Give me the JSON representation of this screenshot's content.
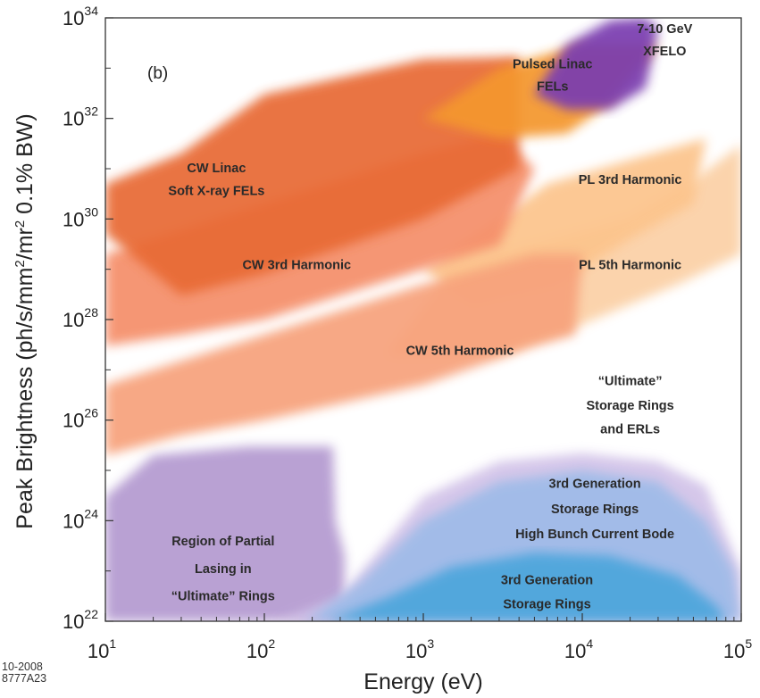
{
  "chart_data": {
    "type": "area",
    "panel_label": "(b)",
    "xlabel": "Energy  (eV)",
    "ylabel_parts": [
      "Peak Brightness  (ph/s/mm",
      "2",
      "/mr",
      "2",
      " 0.1% BW)"
    ],
    "xscale": "log",
    "yscale": "log",
    "xlim": [
      10,
      100000
    ],
    "ylim": [
      1e+22,
      1e+34
    ],
    "x_ticks": [
      {
        "base": "10",
        "exp": "1",
        "value": 10
      },
      {
        "base": "10",
        "exp": "2",
        "value": 100
      },
      {
        "base": "10",
        "exp": "3",
        "value": 1000
      },
      {
        "base": "10",
        "exp": "4",
        "value": 10000
      },
      {
        "base": "10",
        "exp": "5",
        "value": 100000
      }
    ],
    "y_ticks": [
      {
        "base": "10",
        "exp": "22",
        "value": 1e+22
      },
      {
        "base": "10",
        "exp": "24",
        "value": 1e+24
      },
      {
        "base": "10",
        "exp": "26",
        "value": 1e+26
      },
      {
        "base": "10",
        "exp": "28",
        "value": 1e+28
      },
      {
        "base": "10",
        "exp": "30",
        "value": 1e+30
      },
      {
        "base": "10",
        "exp": "32",
        "value": 1e+32
      },
      {
        "base": "10",
        "exp": "34",
        "value": 1e+34
      }
    ],
    "grid": false,
    "regions": [
      {
        "id": "partial-lasing",
        "color": "#b49ad0",
        "points": [
          [
            10,
            3e+24
          ],
          [
            20,
            2e+25
          ],
          [
            80,
            3e+25
          ],
          [
            270,
            3e+25
          ],
          [
            280,
            1e+24
          ],
          [
            320,
            2e+23
          ],
          [
            320,
            1e+22
          ],
          [
            10,
            1e+22
          ]
        ],
        "labels": [
          {
            "text": "Region of Partial",
            "pos": [
              55,
              3.2e+23
            ]
          },
          {
            "text": "Lasing in",
            "pos": [
              55,
              9e+22
            ]
          },
          {
            "text": "“Ultimate” Rings",
            "pos": [
              55,
              2.6e+22
            ]
          }
        ]
      },
      {
        "id": "ultimate-rings-halo",
        "color": "#d2c3e8",
        "points": [
          [
            120,
            1e+22
          ],
          [
            300,
            3e+22
          ],
          [
            1000,
            3e+24
          ],
          [
            3000,
            1.5e+25
          ],
          [
            10000,
            2.2e+25
          ],
          [
            30000,
            1.5e+25
          ],
          [
            60000,
            5e+24
          ],
          [
            100000,
            1e+23
          ],
          [
            100000,
            1e+22
          ]
        ],
        "labels": [
          {
            "text": "“Ultimate”",
            "pos": [
              20000,
              5e+26
            ]
          },
          {
            "text": "Storage Rings",
            "pos": [
              20000,
              1.6e+26
            ]
          },
          {
            "text": "and ERLs",
            "pos": [
              20000,
              5.5e+25
            ]
          }
        ]
      },
      {
        "id": "3rd-gen-high-current",
        "color": "#9fbbe8",
        "points": [
          [
            180,
            1e+22
          ],
          [
            400,
            6e+22
          ],
          [
            1000,
            1e+24
          ],
          [
            3000,
            6e+24
          ],
          [
            10000,
            1e+25
          ],
          [
            30000,
            6e+24
          ],
          [
            60000,
            1e+24
          ],
          [
            90000,
            1e+23
          ],
          [
            100000,
            1e+22
          ]
        ],
        "labels": [
          {
            "text": "3rd Generation",
            "pos": [
              12000,
              4.5e+24
            ]
          },
          {
            "text": "Storage Rings",
            "pos": [
              12000,
              1.4e+24
            ]
          },
          {
            "text": "High Bunch Current Bode",
            "pos": [
              12000,
              4.5e+23
            ]
          }
        ]
      },
      {
        "id": "3rd-gen",
        "color": "#4ea6dc",
        "points": [
          [
            250,
            1e+22
          ],
          [
            600,
            3e+22
          ],
          [
            1500,
            1.2e+23
          ],
          [
            5000,
            2.3e+23
          ],
          [
            15000,
            2e+23
          ],
          [
            40000,
            8e+22
          ],
          [
            70000,
            2e+22
          ],
          [
            80000,
            1e+22
          ]
        ],
        "labels": [
          {
            "text": "3rd Generation",
            "pos": [
              6000,
              5.5e+22
            ]
          },
          {
            "text": "Storage Rings",
            "pos": [
              6000,
              1.8e+22
            ]
          }
        ]
      },
      {
        "id": "pl-5th-harmonic",
        "color": "#fbd0a6",
        "points": [
          [
            600,
            2e+27
          ],
          [
            1500,
            1e+29
          ],
          [
            5000,
            3e+29
          ],
          [
            20000,
            1e+30
          ],
          [
            50000,
            6e+30
          ],
          [
            100000,
            3e+31
          ],
          [
            100000,
            2e+29
          ],
          [
            40000,
            5e+28
          ],
          [
            10000,
            8e+27
          ],
          [
            3000,
            2e+27
          ]
        ],
        "labels": [
          {
            "text": "PL 5th Harmonic",
            "pos": [
              20000,
              1e+29
            ]
          }
        ]
      },
      {
        "id": "pl-3rd-harmonic",
        "color": "#fcc48c",
        "points": [
          [
            1000,
            1e+29
          ],
          [
            3000,
            1e+30
          ],
          [
            6000,
            5e+30
          ],
          [
            20000,
            1.5e+31
          ],
          [
            60000,
            4e+31
          ],
          [
            50000,
            2e+30
          ],
          [
            20000,
            4e+29
          ],
          [
            7000,
            5e+28
          ],
          [
            2000,
            2e+28
          ]
        ],
        "labels": [
          {
            "text": "PL 3rd Harmonic",
            "pos": [
              20000,
              5e+30
            ]
          }
        ]
      },
      {
        "id": "cw-5th-harmonic",
        "color": "#f7a27c",
        "points": [
          [
            10,
            2e+25
          ],
          [
            10,
            5e+26
          ],
          [
            100,
            5e+27
          ],
          [
            1000,
            5e+28
          ],
          [
            5000,
            2e+29
          ],
          [
            10000,
            2e+29
          ],
          [
            9000,
            5e+27
          ],
          [
            5000,
            3e+27
          ],
          [
            1000,
            5e+26
          ],
          [
            100,
            1e+26
          ],
          [
            30,
            5e+25
          ]
        ],
        "labels": [
          {
            "text": "CW 5th Harmonic",
            "pos": [
              1700,
              2e+27
            ]
          }
        ]
      },
      {
        "id": "cw-3rd-harmonic",
        "color": "#f58f6a",
        "points": [
          [
            10,
            3e+27
          ],
          [
            10,
            2e+29
          ],
          [
            100,
            2e+30
          ],
          [
            1000,
            2e+31
          ],
          [
            3000,
            5e+31
          ],
          [
            5000,
            1e+31
          ],
          [
            3000,
            3e+29
          ],
          [
            1000,
            1e+29
          ],
          [
            100,
            1e+28
          ],
          [
            30,
            5e+27
          ]
        ],
        "labels": [
          {
            "text": "CW 3rd Harmonic",
            "pos": [
              160,
              1e+29
            ]
          }
        ]
      },
      {
        "id": "cw-linac-soft-xray",
        "color": "#e86a34",
        "points": [
          [
            10,
            5e+29
          ],
          [
            10,
            5e+30
          ],
          [
            30,
            2e+31
          ],
          [
            100,
            3e+32
          ],
          [
            1000,
            1.5e+33
          ],
          [
            4000,
            1.7e+33
          ],
          [
            4000,
            1e+31
          ],
          [
            1000,
            1e+30
          ],
          [
            100,
            8e+28
          ],
          [
            30,
            3e+28
          ]
        ],
        "labels": [
          {
            "text": "CW Linac",
            "pos": [
              50,
              8.5e+30
            ]
          },
          {
            "text": "Soft X-ray FELs",
            "pos": [
              50,
              3e+30
            ]
          }
        ]
      },
      {
        "id": "pulsed-linac-fels",
        "color": "#f4972e",
        "points": [
          [
            1000,
            1e+32
          ],
          [
            3000,
            1e+33
          ],
          [
            10000,
            3e+33
          ],
          [
            30000,
            3e+33
          ],
          [
            15000,
            2e+32
          ],
          [
            8000,
            5e+31
          ],
          [
            3000,
            4e+31
          ]
        ],
        "labels": [
          {
            "text": "Pulsed Linac",
            "pos": [
              6500,
              1e+33
            ]
          },
          {
            "text": "FELs",
            "pos": [
              6500,
              3.6e+32
            ]
          }
        ]
      },
      {
        "id": "xfelo",
        "color": "#7a3cb0",
        "points": [
          [
            5000,
            3e+32
          ],
          [
            8000,
            3e+33
          ],
          [
            15000,
            9e+33
          ],
          [
            25000,
            1e+34
          ],
          [
            30000,
            6e+33
          ],
          [
            25000,
            4e+32
          ],
          [
            15000,
            1.5e+32
          ],
          [
            8000,
            1.5e+32
          ]
        ],
        "labels": [
          {
            "text": "7-10 GeV",
            "pos": [
              33000,
              5e+33
            ]
          },
          {
            "text": "XFELO",
            "pos": [
              33000,
              1.8e+33
            ]
          }
        ]
      }
    ]
  },
  "footnote": {
    "line1": "10-2008",
    "line2": "8777A23"
  }
}
